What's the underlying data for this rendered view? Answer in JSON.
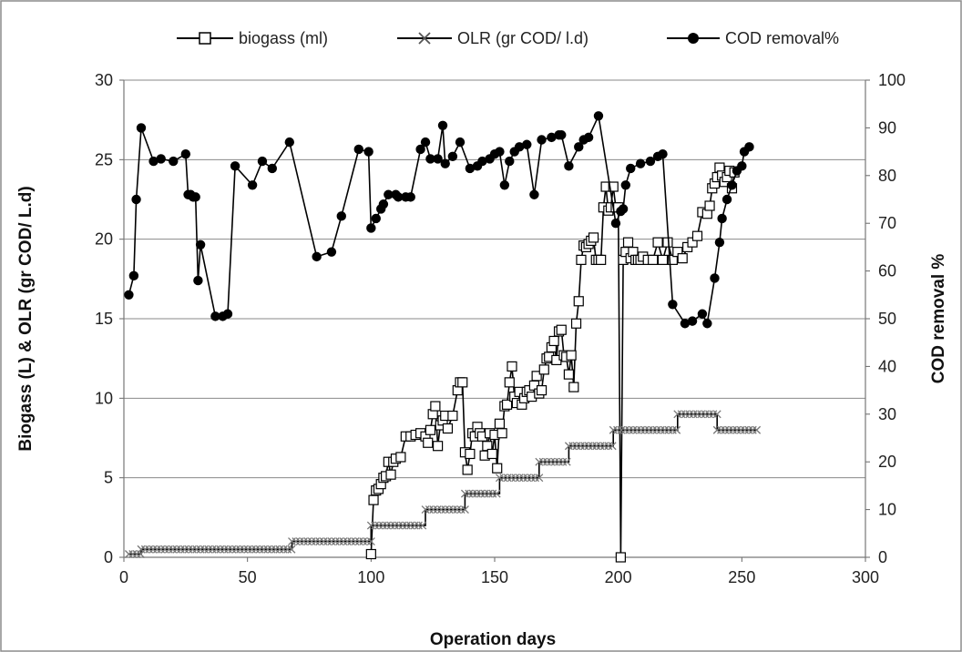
{
  "chart_data": {
    "type": "line",
    "xlabel": "Operation days",
    "ylabel": "Biogass (L) & OLR (gr COD/ L.d)",
    "y2label": "COD removal %",
    "xlim": [
      0,
      300
    ],
    "ylim": [
      0,
      30
    ],
    "y2lim": [
      0,
      100
    ],
    "xticks": [
      "0",
      "50",
      "100",
      "150",
      "200",
      "250",
      "300"
    ],
    "yticks": [
      "0",
      "5",
      "10",
      "15",
      "20",
      "25",
      "30"
    ],
    "y2ticks": [
      "0",
      "10",
      "20",
      "30",
      "40",
      "50",
      "60",
      "70",
      "80",
      "90",
      "100"
    ],
    "grid": "horizontal",
    "legend_position": "top",
    "series": [
      {
        "name": "biogass (ml)",
        "axis": "left",
        "marker": "open-square",
        "points": [
          [
            100,
            0.2
          ],
          [
            101,
            3.6
          ],
          [
            102,
            4.2
          ],
          [
            103,
            4.3
          ],
          [
            104,
            4.6
          ],
          [
            105,
            5.0
          ],
          [
            106,
            5.1
          ],
          [
            107,
            6.0
          ],
          [
            108,
            5.2
          ],
          [
            109,
            6.0
          ],
          [
            110,
            6.2
          ],
          [
            112,
            6.3
          ],
          [
            114,
            7.6
          ],
          [
            116,
            7.6
          ],
          [
            118,
            7.7
          ],
          [
            120,
            7.8
          ],
          [
            122,
            7.6
          ],
          [
            123,
            7.2
          ],
          [
            124,
            8.0
          ],
          [
            125,
            9.0
          ],
          [
            126,
            9.5
          ],
          [
            127,
            7.0
          ],
          [
            128,
            8.3
          ],
          [
            129,
            8.6
          ],
          [
            130,
            8.9
          ],
          [
            131,
            8.1
          ],
          [
            133,
            8.9
          ],
          [
            135,
            10.5
          ],
          [
            136,
            11.0
          ],
          [
            137,
            11.0
          ],
          [
            138,
            6.6
          ],
          [
            139,
            5.5
          ],
          [
            140,
            6.5
          ],
          [
            141,
            7.8
          ],
          [
            142,
            7.6
          ],
          [
            143,
            8.2
          ],
          [
            144,
            7.8
          ],
          [
            145,
            7.6
          ],
          [
            146,
            6.4
          ],
          [
            147,
            7.0
          ],
          [
            148,
            7.8
          ],
          [
            149,
            6.5
          ],
          [
            150,
            7.7
          ],
          [
            151,
            5.6
          ],
          [
            152,
            8.4
          ],
          [
            153,
            7.8
          ],
          [
            154,
            9.5
          ],
          [
            155,
            9.6
          ],
          [
            156,
            11.0
          ],
          [
            157,
            12.0
          ],
          [
            158,
            10.1
          ],
          [
            159,
            9.7
          ],
          [
            160,
            10.4
          ],
          [
            161,
            9.6
          ],
          [
            162,
            10.0
          ],
          [
            163,
            10.4
          ],
          [
            164,
            10.5
          ],
          [
            165,
            10.1
          ],
          [
            166,
            10.8
          ],
          [
            167,
            11.4
          ],
          [
            168,
            10.3
          ],
          [
            169,
            10.5
          ],
          [
            170,
            11.8
          ],
          [
            171,
            12.5
          ],
          [
            172,
            12.6
          ],
          [
            173,
            13.2
          ],
          [
            174,
            13.6
          ],
          [
            175,
            12.4
          ],
          [
            176,
            14.2
          ],
          [
            177,
            14.3
          ],
          [
            178,
            12.7
          ],
          [
            179,
            12.6
          ],
          [
            180,
            11.5
          ],
          [
            181,
            12.7
          ],
          [
            182,
            10.7
          ],
          [
            183,
            14.7
          ],
          [
            184,
            16.1
          ],
          [
            185,
            18.7
          ],
          [
            186,
            19.6
          ],
          [
            187,
            19.5
          ],
          [
            188,
            19.7
          ],
          [
            189,
            19.9
          ],
          [
            190,
            20.1
          ],
          [
            191,
            18.7
          ],
          [
            192,
            18.7
          ],
          [
            193,
            18.7
          ],
          [
            194,
            22.0
          ],
          [
            195,
            23.3
          ],
          [
            196,
            21.8
          ],
          [
            197,
            22.0
          ],
          [
            198,
            23.3
          ],
          [
            199,
            22.0
          ],
          [
            200,
            22.0
          ],
          [
            201,
            0.0
          ],
          [
            202,
            18.7
          ],
          [
            203,
            19.2
          ],
          [
            204,
            19.8
          ],
          [
            205,
            18.8
          ],
          [
            206,
            19.2
          ],
          [
            207,
            18.7
          ],
          [
            208,
            18.7
          ],
          [
            209,
            18.7
          ],
          [
            210,
            18.9
          ],
          [
            212,
            18.7
          ],
          [
            214,
            18.7
          ],
          [
            216,
            19.8
          ],
          [
            218,
            18.7
          ],
          [
            220,
            19.8
          ],
          [
            222,
            18.7
          ],
          [
            224,
            19.2
          ],
          [
            226,
            18.8
          ],
          [
            228,
            19.5
          ],
          [
            230,
            19.8
          ],
          [
            232,
            20.2
          ],
          [
            234,
            21.7
          ],
          [
            236,
            21.6
          ],
          [
            237,
            22.1
          ],
          [
            238,
            23.2
          ],
          [
            239,
            23.5
          ],
          [
            240,
            23.9
          ],
          [
            241,
            24.5
          ],
          [
            242,
            24.0
          ],
          [
            243,
            23.6
          ],
          [
            244,
            23.9
          ],
          [
            245,
            24.3
          ],
          [
            246,
            23.2
          ],
          [
            247,
            24.2
          ]
        ]
      },
      {
        "name": "OLR (gr COD/ l.d)",
        "axis": "left",
        "marker": "x",
        "points": [
          [
            2,
            0.2
          ],
          [
            7,
            0.2
          ],
          [
            7,
            0.5
          ],
          [
            68,
            0.5
          ],
          [
            68,
            1.0
          ],
          [
            100,
            1.0
          ],
          [
            100,
            2.0
          ],
          [
            122,
            2.0
          ],
          [
            122,
            3.0
          ],
          [
            138,
            3.0
          ],
          [
            138,
            4.0
          ],
          [
            152,
            4.0
          ],
          [
            152,
            5.0
          ],
          [
            168,
            5.0
          ],
          [
            168,
            6.0
          ],
          [
            180,
            6.0
          ],
          [
            180,
            7.0
          ],
          [
            198,
            7.0
          ],
          [
            198,
            8.0
          ],
          [
            224,
            8.0
          ],
          [
            224,
            9.0
          ],
          [
            240,
            9.0
          ],
          [
            240,
            8.0
          ],
          [
            256,
            8.0
          ]
        ]
      },
      {
        "name": "COD removal%",
        "axis": "right",
        "marker": "filled-circle",
        "points": [
          [
            2,
            55
          ],
          [
            4,
            59
          ],
          [
            5,
            75
          ],
          [
            7,
            90
          ],
          [
            12,
            83
          ],
          [
            15,
            83.5
          ],
          [
            20,
            83
          ],
          [
            25,
            84.5
          ],
          [
            26,
            76
          ],
          [
            27,
            76
          ],
          [
            28,
            75.5
          ],
          [
            29,
            75.5
          ],
          [
            30,
            58
          ],
          [
            31,
            65.5
          ],
          [
            37,
            50.5
          ],
          [
            40,
            50.5
          ],
          [
            42,
            51
          ],
          [
            45,
            82
          ],
          [
            52,
            78
          ],
          [
            56,
            83
          ],
          [
            60,
            81.5
          ],
          [
            67,
            87
          ],
          [
            78,
            63
          ],
          [
            84,
            64
          ],
          [
            88,
            71.5
          ],
          [
            95,
            85.5
          ],
          [
            99,
            85
          ],
          [
            100,
            69
          ],
          [
            102,
            71
          ],
          [
            104,
            73
          ],
          [
            105,
            74
          ],
          [
            107,
            76
          ],
          [
            110,
            76
          ],
          [
            111,
            75.5
          ],
          [
            114,
            75.5
          ],
          [
            116,
            75.5
          ],
          [
            120,
            85.5
          ],
          [
            122,
            87
          ],
          [
            124,
            83.5
          ],
          [
            127,
            83.5
          ],
          [
            129,
            90.5
          ],
          [
            130,
            82.5
          ],
          [
            133,
            84
          ],
          [
            136,
            87
          ],
          [
            140,
            81.5
          ],
          [
            143,
            82
          ],
          [
            145,
            83
          ],
          [
            148,
            83.5
          ],
          [
            150,
            84.5
          ],
          [
            152,
            85
          ],
          [
            154,
            78
          ],
          [
            156,
            83
          ],
          [
            158,
            85
          ],
          [
            160,
            86
          ],
          [
            163,
            86.5
          ],
          [
            166,
            76
          ],
          [
            169,
            87.5
          ],
          [
            173,
            88
          ],
          [
            176,
            88.5
          ],
          [
            177,
            88.5
          ],
          [
            180,
            82
          ],
          [
            184,
            86
          ],
          [
            186,
            87.5
          ],
          [
            188,
            88
          ],
          [
            192,
            92.5
          ],
          [
            199,
            70
          ],
          [
            201,
            72.5
          ],
          [
            202,
            73
          ],
          [
            203,
            78
          ],
          [
            205,
            81.5
          ],
          [
            209,
            82.5
          ],
          [
            213,
            83
          ],
          [
            216,
            84
          ],
          [
            218,
            84.5
          ],
          [
            222,
            53
          ],
          [
            227,
            49
          ],
          [
            230,
            49.5
          ],
          [
            234,
            51
          ],
          [
            236,
            49
          ],
          [
            239,
            58.5
          ],
          [
            241,
            66
          ],
          [
            242,
            71
          ],
          [
            244,
            75
          ],
          [
            246,
            78
          ],
          [
            248,
            81
          ],
          [
            250,
            82
          ],
          [
            251,
            85
          ],
          [
            253,
            86
          ]
        ]
      }
    ]
  }
}
